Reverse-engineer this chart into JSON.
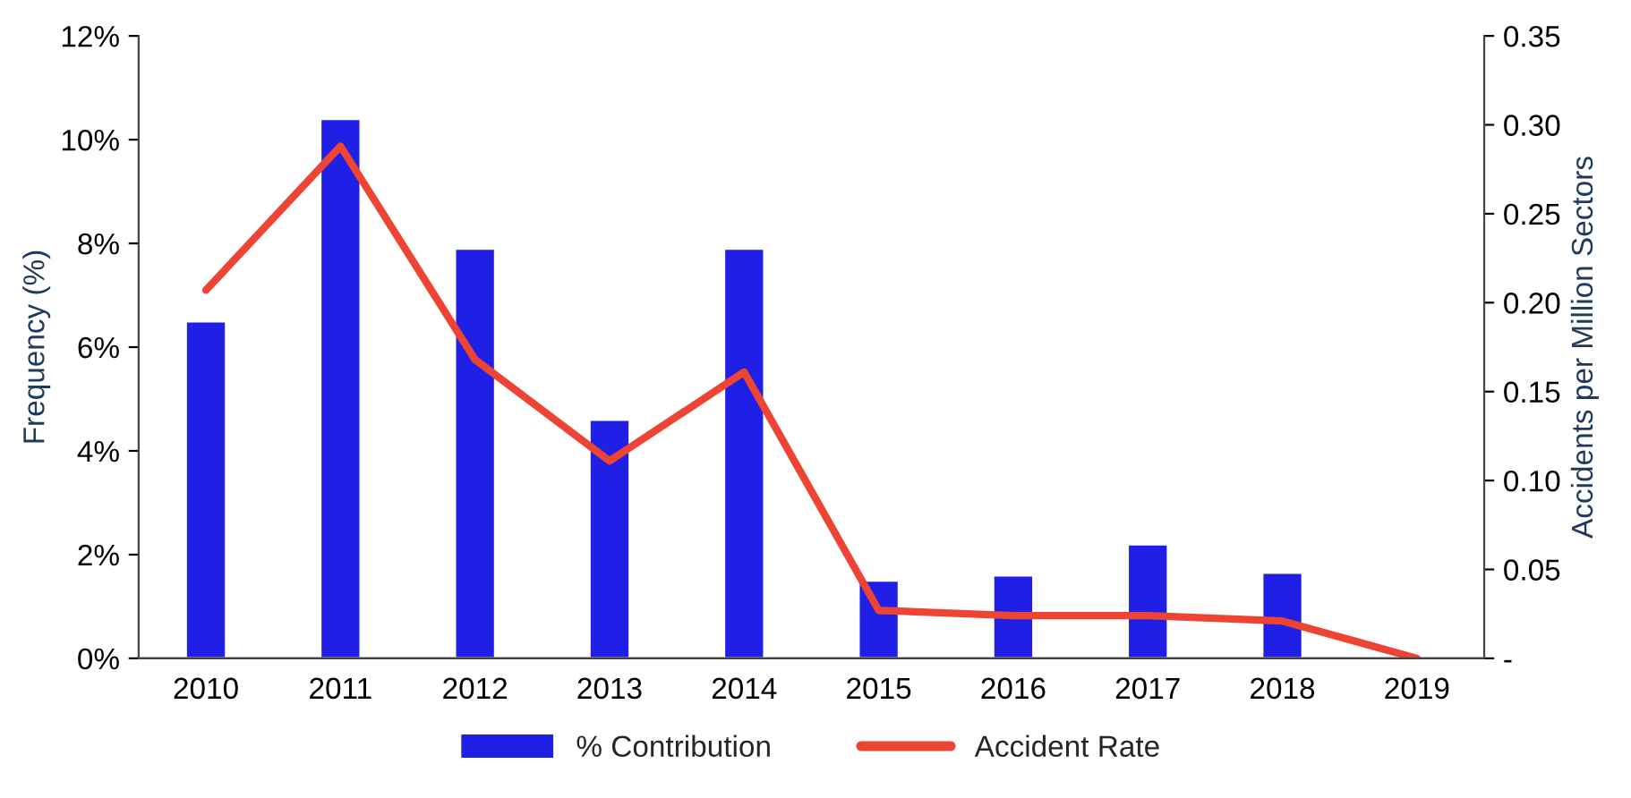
{
  "chart_data": {
    "type": "bar",
    "ylabel": "Frequency (%)",
    "y2label": "Accidents per Million Sectors",
    "categories": [
      "2010",
      "2011",
      "2012",
      "2013",
      "2014",
      "2015",
      "2016",
      "2017",
      "2018",
      "2019"
    ],
    "series": [
      {
        "name": "% Contribution",
        "color": "#1f1fe6",
        "values": [
          6.5,
          10.4,
          7.9,
          4.6,
          7.9,
          1.5,
          1.6,
          2.2,
          1.65,
          null
        ]
      },
      {
        "name": "Accident Rate",
        "type": "line",
        "axis": "y2",
        "color": "#ee4433",
        "values": [
          0.207,
          0.288,
          0.168,
          0.111,
          0.161,
          0.027,
          0.024,
          0.024,
          0.021,
          0
        ]
      }
    ],
    "ylim": [
      0,
      12
    ],
    "yticks": [
      {
        "value": 0,
        "label": "0%"
      },
      {
        "value": 2,
        "label": "2%"
      },
      {
        "value": 4,
        "label": "4%"
      },
      {
        "value": 6,
        "label": "6%"
      },
      {
        "value": 8,
        "label": "8%"
      },
      {
        "value": 10,
        "label": "10%"
      },
      {
        "value": 12,
        "label": "12%"
      }
    ],
    "y2lim": [
      0,
      0.35
    ],
    "y2ticks": [
      {
        "value": 0,
        "label": "-"
      },
      {
        "value": 0.05,
        "label": "0.05"
      },
      {
        "value": 0.1,
        "label": "0.10"
      },
      {
        "value": 0.15,
        "label": "0.15"
      },
      {
        "value": 0.2,
        "label": "0.20"
      },
      {
        "value": 0.25,
        "label": "0.25"
      },
      {
        "value": 0.3,
        "label": "0.30"
      },
      {
        "value": 0.35,
        "label": "0.35"
      }
    ],
    "grid": false,
    "legend": "bottom",
    "marker": "none",
    "line_style": "solid"
  }
}
